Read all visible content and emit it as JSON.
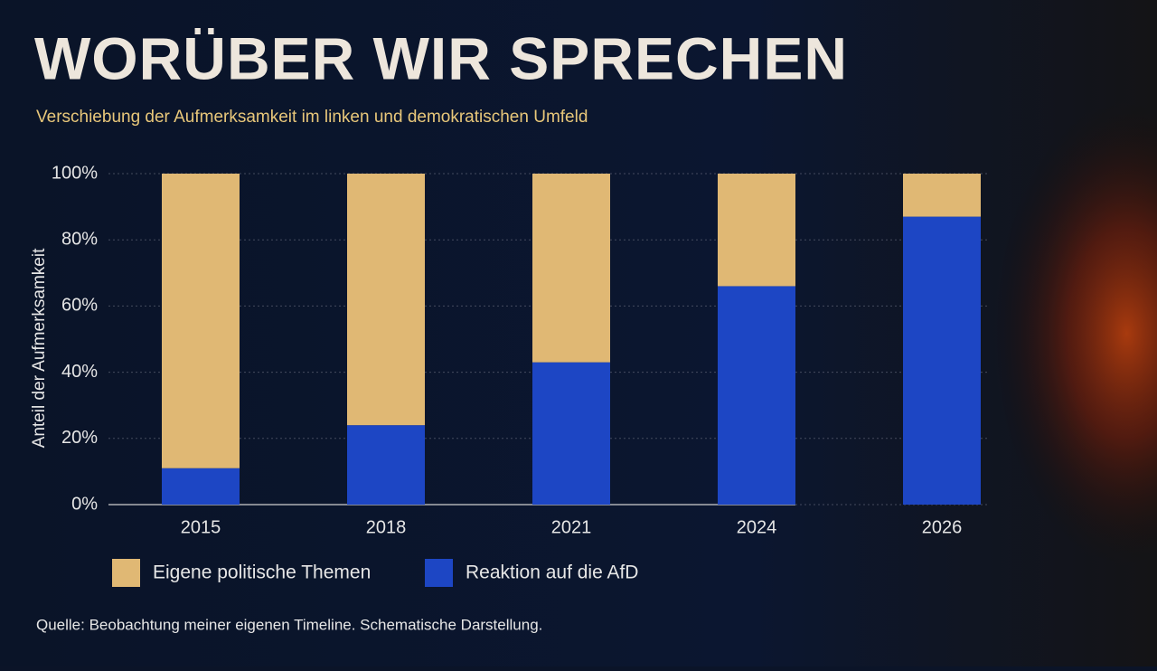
{
  "chart_data": {
    "type": "stacked-bar",
    "title": "WORÜBER WIR SPRECHEN",
    "subtitle": "Verschiebung der Aufmerksamkeit im linken und demokratischen Umfeld",
    "y_label": "Anteil der Aufmerksamkeit",
    "source": "Quelle: Beobachtung meiner eigenen Timeline. Schematische Darstellung.",
    "categories": [
      "2015",
      "2018",
      "2021",
      "2024",
      "2026"
    ],
    "series": [
      {
        "name": "Eigene politische Themen",
        "color": "#e0b874",
        "values": [
          89,
          76,
          57,
          34,
          13
        ]
      },
      {
        "name": "Reaktion auf die AfD",
        "color": "#1d46c4",
        "values": [
          11,
          24,
          43,
          66,
          87
        ]
      }
    ],
    "ylim": [
      0,
      100
    ],
    "yticks": [
      {
        "value": 0,
        "label": "0%"
      },
      {
        "value": 20,
        "label": "20%"
      },
      {
        "value": 40,
        "label": "40%"
      },
      {
        "value": 60,
        "label": "60%"
      },
      {
        "value": 80,
        "label": "80%"
      },
      {
        "value": 100,
        "label": "100%"
      }
    ],
    "grid": true
  }
}
